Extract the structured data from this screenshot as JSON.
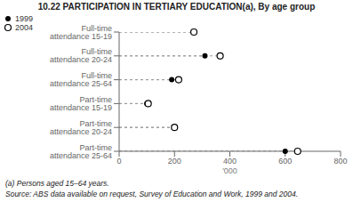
{
  "chart_data": {
    "type": "dot",
    "title": "10.22   PARTICIPATION IN TERTIARY EDUCATION(a), By age group",
    "orientation": "horizontal",
    "categories": [
      "Full-time attendance 15-19",
      "Full-time attendance 20-24",
      "Full-time attendance 25-64",
      "Part-time attendance 15-19",
      "Part-time attendance 20-24",
      "Part-time attendance 25-64"
    ],
    "series": [
      {
        "name": "1999",
        "color": "#000000",
        "marker": "circle",
        "values": [
          270,
          310,
          190,
          100,
          200,
          600
        ]
      },
      {
        "name": "2004",
        "color": "#000000",
        "marker": "open_circle",
        "values": [
          270,
          365,
          215,
          105,
          200,
          645
        ]
      }
    ],
    "xlabel": "'000",
    "xlim": [
      0,
      800
    ],
    "xticks": [
      0,
      200,
      400,
      600,
      800
    ],
    "line_style": "dashed",
    "legend": "upper right",
    "annotations": [
      "(a) Persons aged 15–64 years.",
      "Source: ABS data available on request, Survey of Education and Work, 1999 and 2004."
    ]
  }
}
